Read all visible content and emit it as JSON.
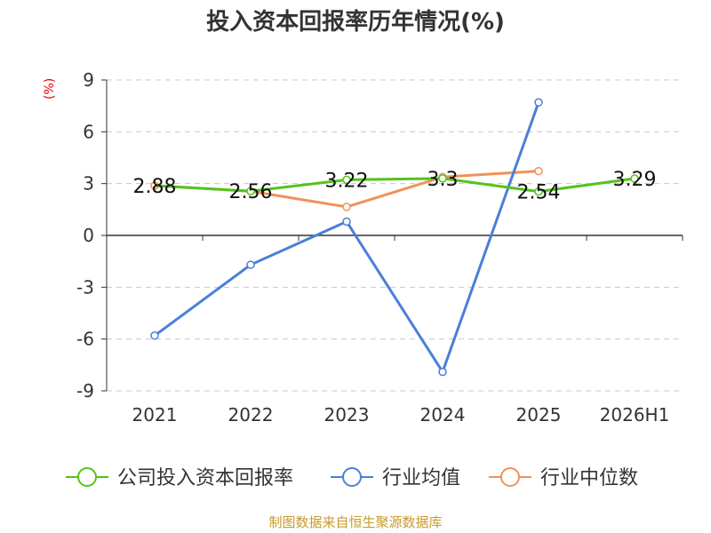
{
  "chart_data": {
    "type": "line",
    "title": "投入资本回报率历年情况(%)",
    "ylabel": "(%)",
    "categories": [
      "2021",
      "2022",
      "2023",
      "2024",
      "2025",
      "2026H1"
    ],
    "ylim": [
      -9,
      9
    ],
    "yticks": [
      9,
      6,
      3,
      0,
      -3,
      -6,
      -9
    ],
    "grid": true,
    "legend_position": "bottom",
    "series": [
      {
        "name": "公司投入资本回报率",
        "color": "#52c41a",
        "values": [
          2.88,
          2.56,
          3.22,
          3.3,
          2.54,
          3.29
        ],
        "labels": [
          "2.88",
          "2.56",
          "3.22",
          "3.3",
          "2.54",
          "3.29"
        ]
      },
      {
        "name": "行业均值",
        "color": "#4a7fd8",
        "values": [
          -5.8,
          -1.7,
          0.8,
          -7.9,
          7.7,
          null
        ]
      },
      {
        "name": "行业中位数",
        "color": "#f0915a",
        "values": [
          2.88,
          2.56,
          1.65,
          3.38,
          3.72,
          null
        ]
      }
    ]
  },
  "source": "制图数据来自恒生聚源数据库"
}
